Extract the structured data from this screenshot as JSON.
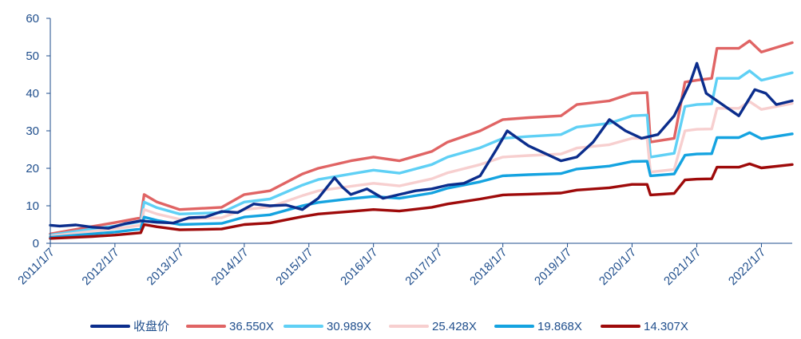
{
  "chart_data": {
    "type": "line",
    "title": "",
    "xlabel": "",
    "ylabel": "",
    "x_ticks": [
      "2011/1/7",
      "2012/1/7",
      "2013/1/7",
      "2014/1/7",
      "2015/1/7",
      "2016/1/7",
      "2017/1/7",
      "2018/1/7",
      "2019/1/7",
      "2020/1/7",
      "2021/1/7",
      "2022/1/7"
    ],
    "y_ticks": [
      0,
      10,
      20,
      30,
      40,
      50,
      60
    ],
    "ylim": [
      0,
      60
    ],
    "xlim": [
      "2011/1/7",
      "2022/6/30"
    ],
    "grid": false,
    "legend_position": "bottom",
    "series": [
      {
        "name": "收盘价",
        "color": "#0b2d8c",
        "width": 3.4,
        "points": [
          [
            "2011/1/7",
            4.8
          ],
          [
            "2011/3/1",
            4.6
          ],
          [
            "2011/6/1",
            4.9
          ],
          [
            "2011/9/1",
            4.3
          ],
          [
            "2011/12/1",
            4.0
          ],
          [
            "2012/3/1",
            5.2
          ],
          [
            "2012/6/1",
            6.0
          ],
          [
            "2012/9/1",
            5.6
          ],
          [
            "2012/12/1",
            5.4
          ],
          [
            "2013/3/1",
            6.8
          ],
          [
            "2013/6/1",
            7.0
          ],
          [
            "2013/9/1",
            8.5
          ],
          [
            "2013/12/1",
            8.2
          ],
          [
            "2014/3/1",
            10.5
          ],
          [
            "2014/6/1",
            10.0
          ],
          [
            "2014/9/1",
            10.2
          ],
          [
            "2014/12/1",
            9.0
          ],
          [
            "2015/3/1",
            12.0
          ],
          [
            "2015/6/1",
            17.5
          ],
          [
            "2015/7/15",
            15.0
          ],
          [
            "2015/9/1",
            13.0
          ],
          [
            "2015/12/1",
            14.5
          ],
          [
            "2016/3/1",
            12.0
          ],
          [
            "2016/6/1",
            13.0
          ],
          [
            "2016/9/1",
            14.0
          ],
          [
            "2016/12/1",
            14.5
          ],
          [
            "2017/3/1",
            15.5
          ],
          [
            "2017/6/1",
            16.0
          ],
          [
            "2017/9/1",
            18.0
          ],
          [
            "2017/12/1",
            25.0
          ],
          [
            "2018/2/1",
            30.0
          ],
          [
            "2018/4/1",
            28.0
          ],
          [
            "2018/6/1",
            26.0
          ],
          [
            "2018/9/1",
            24.0
          ],
          [
            "2018/12/1",
            22.0
          ],
          [
            "2019/3/1",
            23.0
          ],
          [
            "2019/6/1",
            27.0
          ],
          [
            "2019/9/1",
            33.0
          ],
          [
            "2019/12/1",
            30.0
          ],
          [
            "2020/3/1",
            28.0
          ],
          [
            "2020/6/1",
            29.0
          ],
          [
            "2020/9/1",
            34.0
          ],
          [
            "2020/12/1",
            43.0
          ],
          [
            "2021/1/7",
            48.0
          ],
          [
            "2021/3/1",
            40.0
          ],
          [
            "2021/6/1",
            37.0
          ],
          [
            "2021/9/1",
            34.0
          ],
          [
            "2021/12/1",
            41.0
          ],
          [
            "2022/2/1",
            40.0
          ],
          [
            "2022/4/1",
            37.0
          ],
          [
            "2022/6/30",
            38.0
          ]
        ]
      },
      {
        "name": "36.550X",
        "color": "#e06464",
        "width": 3.4,
        "points": [
          [
            "2011/1/7",
            2.5
          ],
          [
            "2011/9/1",
            4.5
          ],
          [
            "2012/1/7",
            5.5
          ],
          [
            "2012/6/1",
            6.8
          ],
          [
            "2012/6/20",
            13.0
          ],
          [
            "2012/9/1",
            11.0
          ],
          [
            "2013/1/7",
            9.0
          ],
          [
            "2013/9/1",
            9.6
          ],
          [
            "2014/1/7",
            13.0
          ],
          [
            "2014/6/1",
            14.0
          ],
          [
            "2014/12/1",
            18.5
          ],
          [
            "2015/3/1",
            20.0
          ],
          [
            "2015/9/1",
            22.0
          ],
          [
            "2016/1/7",
            23.0
          ],
          [
            "2016/6/1",
            22.0
          ],
          [
            "2016/12/1",
            24.5
          ],
          [
            "2017/3/1",
            27.0
          ],
          [
            "2017/9/1",
            30.0
          ],
          [
            "2018/1/7",
            33.0
          ],
          [
            "2018/6/1",
            33.5
          ],
          [
            "2018/12/1",
            34.0
          ],
          [
            "2019/3/1",
            37.0
          ],
          [
            "2019/9/1",
            38.0
          ],
          [
            "2020/1/7",
            40.0
          ],
          [
            "2020/4/1",
            40.2
          ],
          [
            "2020/4/20",
            27.0
          ],
          [
            "2020/9/1",
            28.0
          ],
          [
            "2020/11/1",
            43.0
          ],
          [
            "2021/1/7",
            43.5
          ],
          [
            "2021/4/1",
            44.0
          ],
          [
            "2021/5/1",
            52.0
          ],
          [
            "2021/9/1",
            52.0
          ],
          [
            "2021/11/1",
            54.0
          ],
          [
            "2022/1/7",
            51.0
          ],
          [
            "2022/6/30",
            53.5
          ]
        ]
      },
      {
        "name": "30.989X",
        "color": "#5fd0f5",
        "width": 3.4,
        "points": [
          [
            "2011/1/7",
            2.2
          ],
          [
            "2011/9/1",
            3.8
          ],
          [
            "2012/1/7",
            4.6
          ],
          [
            "2012/6/1",
            5.8
          ],
          [
            "2012/6/20",
            11.0
          ],
          [
            "2012/9/1",
            9.5
          ],
          [
            "2013/1/7",
            7.8
          ],
          [
            "2013/9/1",
            8.2
          ],
          [
            "2014/1/7",
            11.0
          ],
          [
            "2014/6/1",
            11.8
          ],
          [
            "2014/12/1",
            15.5
          ],
          [
            "2015/3/1",
            17.0
          ],
          [
            "2015/9/1",
            18.5
          ],
          [
            "2016/1/7",
            19.5
          ],
          [
            "2016/6/1",
            18.7
          ],
          [
            "2016/12/1",
            21.0
          ],
          [
            "2017/3/1",
            23.0
          ],
          [
            "2017/9/1",
            25.5
          ],
          [
            "2018/1/7",
            28.0
          ],
          [
            "2018/6/1",
            28.5
          ],
          [
            "2018/12/1",
            29.0
          ],
          [
            "2019/3/1",
            31.0
          ],
          [
            "2019/9/1",
            32.0
          ],
          [
            "2020/1/7",
            34.0
          ],
          [
            "2020/4/1",
            34.2
          ],
          [
            "2020/4/20",
            23.0
          ],
          [
            "2020/9/1",
            24.0
          ],
          [
            "2020/11/1",
            36.5
          ],
          [
            "2021/1/7",
            37.0
          ],
          [
            "2021/4/1",
            37.2
          ],
          [
            "2021/5/1",
            44.0
          ],
          [
            "2021/9/1",
            44.0
          ],
          [
            "2021/11/1",
            46.0
          ],
          [
            "2022/1/7",
            43.5
          ],
          [
            "2022/6/30",
            45.5
          ]
        ]
      },
      {
        "name": "25.428X",
        "color": "#f7cfcf",
        "width": 3.4,
        "points": [
          [
            "2011/1/7",
            1.9
          ],
          [
            "2011/9/1",
            3.2
          ],
          [
            "2012/1/7",
            3.9
          ],
          [
            "2012/6/1",
            4.8
          ],
          [
            "2012/6/20",
            9.0
          ],
          [
            "2012/9/1",
            7.8
          ],
          [
            "2013/1/7",
            6.4
          ],
          [
            "2013/9/1",
            6.8
          ],
          [
            "2014/1/7",
            9.0
          ],
          [
            "2014/6/1",
            9.7
          ],
          [
            "2014/12/1",
            12.7
          ],
          [
            "2015/3/1",
            14.0
          ],
          [
            "2015/9/1",
            15.2
          ],
          [
            "2016/1/7",
            16.0
          ],
          [
            "2016/6/1",
            15.3
          ],
          [
            "2016/12/1",
            17.2
          ],
          [
            "2017/3/1",
            18.8
          ],
          [
            "2017/9/1",
            21.0
          ],
          [
            "2018/1/7",
            23.0
          ],
          [
            "2018/6/1",
            23.4
          ],
          [
            "2018/12/1",
            23.8
          ],
          [
            "2019/3/1",
            25.4
          ],
          [
            "2019/9/1",
            26.3
          ],
          [
            "2020/1/7",
            28.0
          ],
          [
            "2020/4/1",
            28.0
          ],
          [
            "2020/4/20",
            19.0
          ],
          [
            "2020/9/1",
            19.7
          ],
          [
            "2020/11/1",
            30.0
          ],
          [
            "2021/1/7",
            30.4
          ],
          [
            "2021/4/1",
            30.5
          ],
          [
            "2021/5/1",
            36.0
          ],
          [
            "2021/9/1",
            36.0
          ],
          [
            "2021/11/1",
            37.8
          ],
          [
            "2022/1/7",
            35.7
          ],
          [
            "2022/6/30",
            37.3
          ]
        ]
      },
      {
        "name": "19.868X",
        "color": "#14a3e0",
        "width": 3.4,
        "points": [
          [
            "2011/1/7",
            1.6
          ],
          [
            "2011/9/1",
            2.5
          ],
          [
            "2012/1/7",
            3.0
          ],
          [
            "2012/6/1",
            3.8
          ],
          [
            "2012/6/20",
            7.0
          ],
          [
            "2012/9/1",
            6.1
          ],
          [
            "2013/1/7",
            5.0
          ],
          [
            "2013/9/1",
            5.3
          ],
          [
            "2014/1/7",
            7.0
          ],
          [
            "2014/6/1",
            7.6
          ],
          [
            "2014/12/1",
            10.0
          ],
          [
            "2015/3/1",
            10.9
          ],
          [
            "2015/9/1",
            11.9
          ],
          [
            "2016/1/7",
            12.5
          ],
          [
            "2016/6/1",
            12.0
          ],
          [
            "2016/12/1",
            13.4
          ],
          [
            "2017/3/1",
            14.7
          ],
          [
            "2017/9/1",
            16.4
          ],
          [
            "2018/1/7",
            18.0
          ],
          [
            "2018/6/1",
            18.3
          ],
          [
            "2018/12/1",
            18.6
          ],
          [
            "2019/3/1",
            19.8
          ],
          [
            "2019/9/1",
            20.6
          ],
          [
            "2020/1/7",
            21.8
          ],
          [
            "2020/4/1",
            21.9
          ],
          [
            "2020/4/20",
            18.0
          ],
          [
            "2020/9/1",
            18.5
          ],
          [
            "2020/11/1",
            23.5
          ],
          [
            "2021/1/7",
            23.8
          ],
          [
            "2021/4/1",
            23.9
          ],
          [
            "2021/5/1",
            28.2
          ],
          [
            "2021/9/1",
            28.2
          ],
          [
            "2021/11/1",
            29.5
          ],
          [
            "2022/1/7",
            27.9
          ],
          [
            "2022/6/30",
            29.2
          ]
        ]
      },
      {
        "name": "14.307X",
        "color": "#9e0a0a",
        "width": 3.4,
        "points": [
          [
            "2011/1/7",
            1.3
          ],
          [
            "2011/9/1",
            1.8
          ],
          [
            "2012/1/7",
            2.2
          ],
          [
            "2012/6/1",
            2.8
          ],
          [
            "2012/6/20",
            5.0
          ],
          [
            "2012/9/1",
            4.4
          ],
          [
            "2013/1/7",
            3.6
          ],
          [
            "2013/9/1",
            3.8
          ],
          [
            "2014/1/7",
            5.0
          ],
          [
            "2014/6/1",
            5.4
          ],
          [
            "2014/12/1",
            7.1
          ],
          [
            "2015/3/1",
            7.8
          ],
          [
            "2015/9/1",
            8.5
          ],
          [
            "2016/1/7",
            9.0
          ],
          [
            "2016/6/1",
            8.6
          ],
          [
            "2016/12/1",
            9.6
          ],
          [
            "2017/3/1",
            10.5
          ],
          [
            "2017/9/1",
            11.8
          ],
          [
            "2018/1/7",
            12.9
          ],
          [
            "2018/6/1",
            13.1
          ],
          [
            "2018/12/1",
            13.4
          ],
          [
            "2019/3/1",
            14.2
          ],
          [
            "2019/9/1",
            14.8
          ],
          [
            "2020/1/7",
            15.7
          ],
          [
            "2020/4/1",
            15.7
          ],
          [
            "2020/4/20",
            12.9
          ],
          [
            "2020/9/1",
            13.3
          ],
          [
            "2020/11/1",
            16.9
          ],
          [
            "2021/1/7",
            17.1
          ],
          [
            "2021/4/1",
            17.2
          ],
          [
            "2021/5/1",
            20.3
          ],
          [
            "2021/9/1",
            20.3
          ],
          [
            "2021/11/1",
            21.2
          ],
          [
            "2022/1/7",
            20.1
          ],
          [
            "2022/6/30",
            21.0
          ]
        ]
      }
    ]
  }
}
